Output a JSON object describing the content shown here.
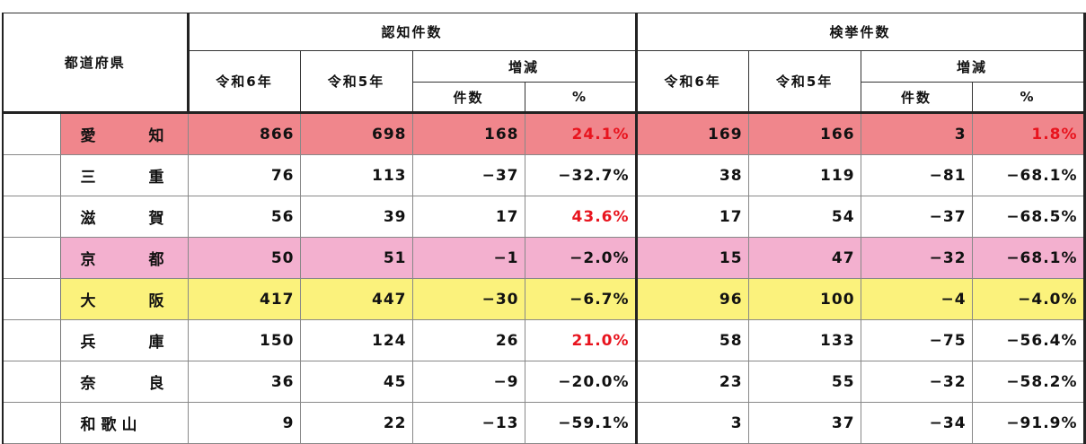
{
  "header": {
    "prefecture_label": "都道府県",
    "recognized_label": "認知件数",
    "cleared_label": "検挙件数",
    "r6_label": "令和6年",
    "r5_label": "令和5年",
    "change_label": "増減",
    "count_label": "件数",
    "pct_label": "%"
  },
  "rows": [
    {
      "name_chars": [
        "愛",
        "知"
      ],
      "r_r6": "866",
      "r_r5": "698",
      "r_diff": "168",
      "r_pct": "24.1%",
      "c_r6": "169",
      "c_r5": "166",
      "c_diff": "3",
      "c_pct": "1.8%",
      "highlight": "#f0868c",
      "r_pct_color": "red",
      "c_pct_color": "red"
    },
    {
      "name_chars": [
        "三",
        "重"
      ],
      "r_r6": "76",
      "r_r5": "113",
      "r_diff": "−37",
      "r_pct": "−32.7%",
      "c_r6": "38",
      "c_r5": "119",
      "c_diff": "−81",
      "c_pct": "−68.1%"
    },
    {
      "name_chars": [
        "滋",
        "賀"
      ],
      "r_r6": "56",
      "r_r5": "39",
      "r_diff": "17",
      "r_pct": "43.6%",
      "c_r6": "17",
      "c_r5": "54",
      "c_diff": "−37",
      "c_pct": "−68.5%",
      "r_pct_color": "red"
    },
    {
      "name_chars": [
        "京",
        "都"
      ],
      "r_r6": "50",
      "r_r5": "51",
      "r_diff": "−1",
      "r_pct": "−2.0%",
      "c_r6": "15",
      "c_r5": "47",
      "c_diff": "−32",
      "c_pct": "−68.1%",
      "highlight": "#f3b0cf"
    },
    {
      "name_chars": [
        "大",
        "阪"
      ],
      "r_r6": "417",
      "r_r5": "447",
      "r_diff": "−30",
      "r_pct": "−6.7%",
      "c_r6": "96",
      "c_r5": "100",
      "c_diff": "−4",
      "c_pct": "−4.0%",
      "highlight": "#fbf27c"
    },
    {
      "name_chars": [
        "兵",
        "庫"
      ],
      "r_r6": "150",
      "r_r5": "124",
      "r_diff": "26",
      "r_pct": "21.0%",
      "c_r6": "58",
      "c_r5": "133",
      "c_diff": "−75",
      "c_pct": "−56.4%",
      "r_pct_color": "red"
    },
    {
      "name_chars": [
        "奈",
        "良"
      ],
      "r_r6": "36",
      "r_r5": "45",
      "r_diff": "−9",
      "r_pct": "−20.0%",
      "c_r6": "23",
      "c_r5": "55",
      "c_diff": "−32",
      "c_pct": "−58.2%"
    },
    {
      "name_chars": [
        "和",
        "歌",
        "山"
      ],
      "r_r6": "9",
      "r_r5": "22",
      "r_diff": "−13",
      "r_pct": "−59.1%",
      "c_r6": "3",
      "c_r5": "37",
      "c_diff": "−34",
      "c_pct": "−91.9%"
    }
  ]
}
